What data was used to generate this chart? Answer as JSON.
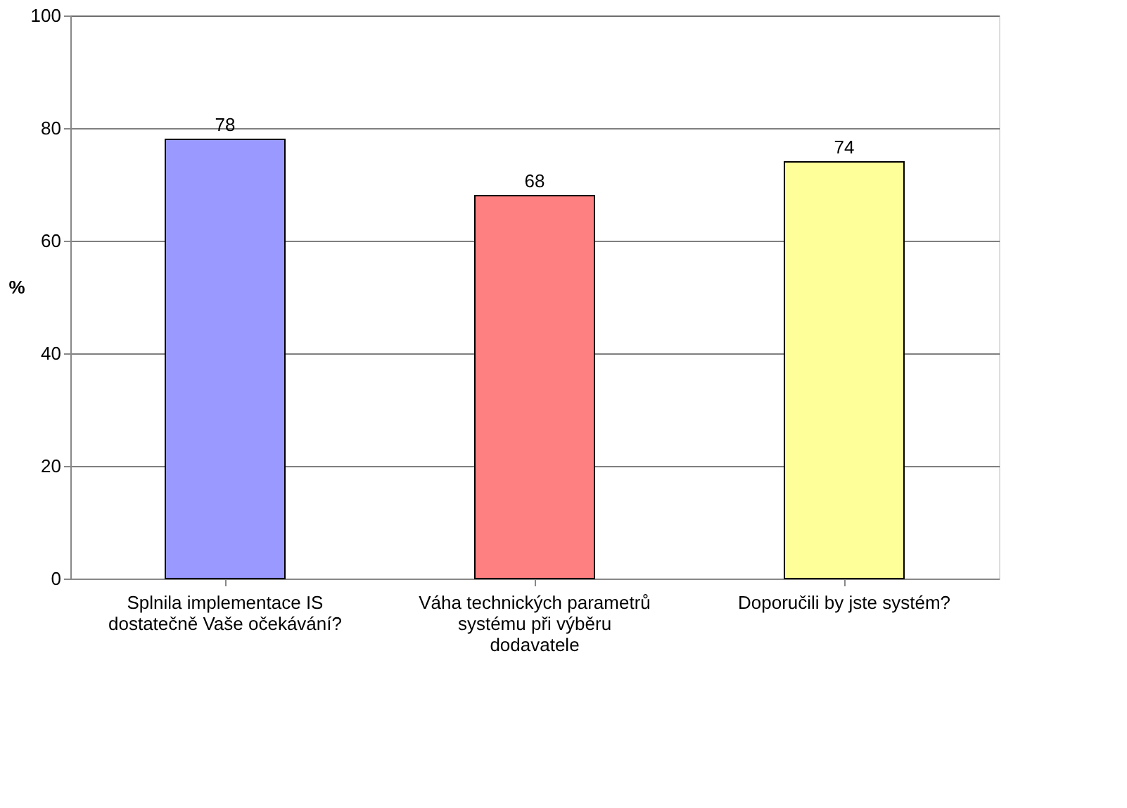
{
  "chart_data": {
    "type": "bar",
    "ylabel": "%",
    "categories": [
      "Splnila implementace IS dostatečně Vaše očekávání?",
      "Váha technických parametrů systému při výběru dodavatele",
      "Doporučili by jste systém?"
    ],
    "values": [
      78,
      68,
      74
    ],
    "colors": [
      "#9999ff",
      "#ff8080",
      "#ffff99"
    ],
    "ylim": [
      0,
      100
    ],
    "yticks": [
      0,
      20,
      40,
      60,
      80,
      100
    ],
    "grid": "y",
    "data_labels": true
  }
}
